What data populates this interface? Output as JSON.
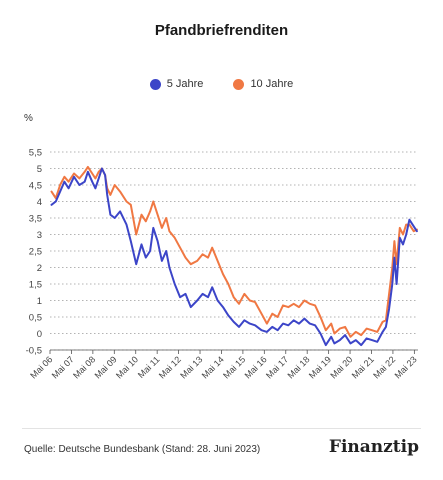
{
  "chart_data": {
    "type": "line",
    "title": "Pfandbriefrenditen",
    "unit_label": "%",
    "ylim": [
      -0.5,
      5.5
    ],
    "yticks": [
      -0.5,
      0,
      0.5,
      1,
      1.5,
      2,
      2.5,
      3,
      3.5,
      4,
      4.5,
      5,
      5.5
    ],
    "ytick_labels": [
      "-0,5",
      "0",
      "0,5",
      "1",
      "1,5",
      "2",
      "2,5",
      "3",
      "3,5",
      "4",
      "4,5",
      "5",
      "5,5"
    ],
    "xlim": [
      2006.33,
      2023.5
    ],
    "xticks": [
      2006.33,
      2007.33,
      2008.33,
      2009.33,
      2010.33,
      2011.33,
      2012.33,
      2013.33,
      2014.33,
      2015.33,
      2016.33,
      2017.33,
      2018.33,
      2019.33,
      2020.33,
      2021.33,
      2022.33,
      2023.33
    ],
    "xtick_labels": [
      "Mai 06",
      "Mai 07",
      "Mai 08",
      "Mai 09",
      "Mai 10",
      "Mai 11",
      "Mai 12",
      "Mai 13",
      "Mai 14",
      "Mai 15",
      "Mai 16",
      "Mai 17",
      "Mai 18",
      "Mai 19",
      "Mai 20",
      "Mai 21",
      "Mai 22",
      "Mai 23"
    ],
    "grid": "horizontal dotted",
    "legend_position": "top-center",
    "series": [
      {
        "name": "5 Jahre",
        "color": "#3c45c8",
        "x": [
          2006.4,
          2006.6,
          2006.8,
          2007.0,
          2007.2,
          2007.45,
          2007.7,
          2007.95,
          2008.1,
          2008.3,
          2008.45,
          2008.6,
          2008.75,
          2008.9,
          2009.0,
          2009.15,
          2009.35,
          2009.6,
          2009.9,
          2010.1,
          2010.35,
          2010.6,
          2010.8,
          2011.0,
          2011.15,
          2011.35,
          2011.55,
          2011.75,
          2011.9,
          2012.15,
          2012.4,
          2012.65,
          2012.9,
          2013.2,
          2013.45,
          2013.7,
          2013.9,
          2014.15,
          2014.4,
          2014.65,
          2014.9,
          2015.15,
          2015.4,
          2015.65,
          2015.9,
          2016.2,
          2016.45,
          2016.7,
          2016.95,
          2017.2,
          2017.45,
          2017.7,
          2017.95,
          2018.2,
          2018.45,
          2018.7,
          2018.95,
          2019.2,
          2019.45,
          2019.6,
          2019.85,
          2020.1,
          2020.35,
          2020.6,
          2020.85,
          2021.1,
          2021.35,
          2021.6,
          2021.85,
          2022.0,
          2022.15,
          2022.3,
          2022.4,
          2022.5,
          2022.65,
          2022.8,
          2022.95,
          2023.1,
          2023.3,
          2023.45
        ],
        "values": [
          3.9,
          4.0,
          4.3,
          4.6,
          4.4,
          4.75,
          4.5,
          4.6,
          4.9,
          4.6,
          4.4,
          4.7,
          5.0,
          4.8,
          4.2,
          3.6,
          3.5,
          3.7,
          3.3,
          2.8,
          2.1,
          2.7,
          2.3,
          2.5,
          3.2,
          2.8,
          2.2,
          2.5,
          2.0,
          1.5,
          1.1,
          1.2,
          0.8,
          1.0,
          1.2,
          1.1,
          1.4,
          1.0,
          0.8,
          0.55,
          0.35,
          0.2,
          0.4,
          0.3,
          0.25,
          0.1,
          0.05,
          0.2,
          0.1,
          0.3,
          0.25,
          0.4,
          0.3,
          0.45,
          0.3,
          0.25,
          0.0,
          -0.35,
          -0.1,
          -0.3,
          -0.2,
          -0.05,
          -0.3,
          -0.2,
          -0.35,
          -0.15,
          -0.2,
          -0.25,
          0.05,
          0.2,
          0.75,
          1.5,
          2.3,
          1.5,
          2.9,
          2.7,
          3.0,
          3.45,
          3.25,
          3.1
        ]
      },
      {
        "name": "10 Jahre",
        "color": "#f07843",
        "x": [
          2006.4,
          2006.6,
          2006.8,
          2007.0,
          2007.2,
          2007.45,
          2007.7,
          2007.95,
          2008.1,
          2008.3,
          2008.45,
          2008.6,
          2008.75,
          2008.9,
          2009.0,
          2009.15,
          2009.35,
          2009.6,
          2009.9,
          2010.1,
          2010.35,
          2010.6,
          2010.8,
          2011.0,
          2011.15,
          2011.35,
          2011.55,
          2011.75,
          2011.9,
          2012.15,
          2012.4,
          2012.65,
          2012.9,
          2013.2,
          2013.45,
          2013.7,
          2013.9,
          2014.15,
          2014.4,
          2014.65,
          2014.9,
          2015.15,
          2015.4,
          2015.65,
          2015.9,
          2016.2,
          2016.45,
          2016.7,
          2016.95,
          2017.2,
          2017.45,
          2017.7,
          2017.95,
          2018.2,
          2018.45,
          2018.7,
          2018.95,
          2019.2,
          2019.45,
          2019.6,
          2019.85,
          2020.1,
          2020.35,
          2020.6,
          2020.85,
          2021.1,
          2021.35,
          2021.6,
          2021.85,
          2022.0,
          2022.15,
          2022.3,
          2022.4,
          2022.5,
          2022.65,
          2022.8,
          2022.95,
          2023.1,
          2023.3,
          2023.45
        ],
        "values": [
          4.3,
          4.1,
          4.5,
          4.75,
          4.6,
          4.85,
          4.7,
          4.9,
          5.05,
          4.85,
          4.7,
          4.9,
          5.0,
          4.8,
          4.4,
          4.2,
          4.5,
          4.3,
          4.0,
          3.9,
          3.0,
          3.6,
          3.4,
          3.7,
          4.0,
          3.6,
          3.2,
          3.5,
          3.1,
          2.9,
          2.6,
          2.3,
          2.1,
          2.2,
          2.4,
          2.3,
          2.6,
          2.2,
          1.8,
          1.5,
          1.1,
          0.9,
          1.2,
          1.0,
          0.95,
          0.6,
          0.3,
          0.6,
          0.5,
          0.85,
          0.8,
          0.9,
          0.8,
          1.0,
          0.9,
          0.85,
          0.5,
          0.1,
          0.3,
          0.0,
          0.15,
          0.2,
          -0.1,
          0.05,
          -0.05,
          0.15,
          0.1,
          0.05,
          0.35,
          0.4,
          1.2,
          2.0,
          2.8,
          2.1,
          3.2,
          3.0,
          3.3,
          3.3,
          3.1,
          3.15
        ]
      }
    ]
  },
  "footer": {
    "source": "Quelle: Deutsche Bundesbank (Stand: 28. Juni 2023)",
    "brand": "Finanztip"
  }
}
